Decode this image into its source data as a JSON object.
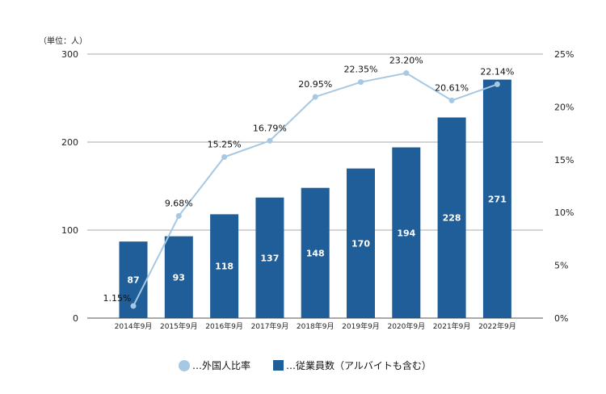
{
  "chart_data": {
    "type": "bar+line",
    "unit_label": "（単位：人）",
    "categories": [
      "2014年9月",
      "2015年9月",
      "2016年9月",
      "2017年9月",
      "2018年9月",
      "2019年9月",
      "2020年9月",
      "2021年9月",
      "2022年9月"
    ],
    "bars": {
      "name": "…従業員数（アルバイトも含む）",
      "values": [
        87,
        93,
        118,
        137,
        148,
        170,
        194,
        228,
        271
      ],
      "labels": [
        "87",
        "93",
        "118",
        "137",
        "148",
        "170",
        "194",
        "228",
        "271"
      ],
      "color": "#1f5e99"
    },
    "line": {
      "name": "…外国人比率",
      "values": [
        1.15,
        9.68,
        15.25,
        16.79,
        20.95,
        22.35,
        23.2,
        20.61,
        22.14
      ],
      "labels": [
        "1.15%",
        "9.68%",
        "15.25%",
        "16.79%",
        "20.95%",
        "22.35%",
        "23.20%",
        "20.61%",
        "22.14%"
      ],
      "color": "#a6c8e2"
    },
    "y_left": {
      "min": 0,
      "max": 300,
      "ticks": [
        0,
        100,
        200,
        300
      ],
      "tick_labels": [
        "0",
        "100",
        "200",
        "300"
      ]
    },
    "y_right": {
      "min": 0,
      "max": 25,
      "ticks": [
        0,
        5,
        10,
        15,
        20,
        25
      ],
      "tick_labels": [
        "0%",
        "5%",
        "10%",
        "15%",
        "20%",
        "25%"
      ]
    },
    "grid": true,
    "legend_position": "bottom-center"
  }
}
